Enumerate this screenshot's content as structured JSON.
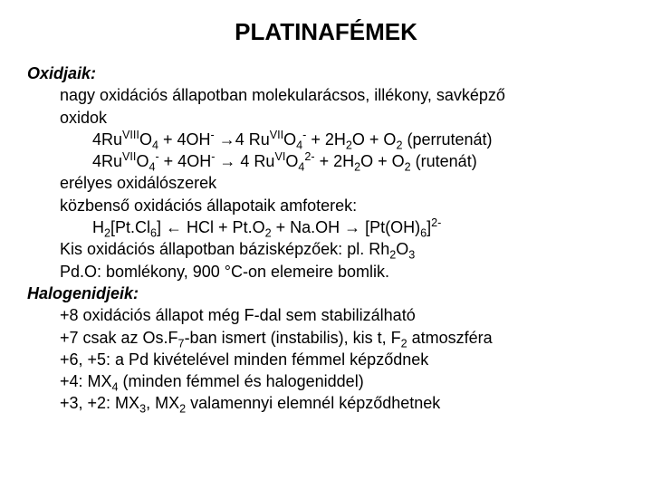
{
  "title": "PLATINAFÉMEK",
  "h1": "Oxidjaik:",
  "l1": "nagy oxidációs állapotban molekularácsos, illékony, savképző",
  "l1b": "oxidok",
  "eq1_a": "4Ru",
  "eq1_sup1": "VIII",
  "eq1_b": "O",
  "eq1_sub1": "4",
  "eq1_c": " + 4OH",
  "eq1_sup2": "-",
  "eq1_d": "  →4 Ru",
  "eq1_sup3": "VII",
  "eq1_e": "O",
  "eq1_sub2": "4",
  "eq1_sup4": "-",
  "eq1_f": " +  2H",
  "eq1_sub3": "2",
  "eq1_g": "O  + O",
  "eq1_sub4": "2",
  "eq1_h": "  (perrutenát)",
  "eq2_a": "4Ru",
  "eq2_sup1": "VII",
  "eq2_b": "O",
  "eq2_sub1": "4",
  "eq2_sup2": "-",
  "eq2_c": "  +  4OH",
  "eq2_sup3": "-",
  "eq2_d": "  → 4 Ru",
  "eq2_sup4": "VI",
  "eq2_e": "O",
  "eq2_sub2": "4",
  "eq2_sup5": "2-",
  "eq2_f": " + 2H",
  "eq2_sub3": "2",
  "eq2_g": "O + O",
  "eq2_sub4": "2",
  "eq2_h": "  (rutenát)",
  "l2": "erélyes oxidálószerek",
  "l3": "közbenső oxidációs állapotaik amfoterek:",
  "eq3_a": "H",
  "eq3_sub1": "2",
  "eq3_b": "[Pt.Cl",
  "eq3_sub2": "6",
  "eq3_c": "] ← HCl  + Pt.O",
  "eq3_sub3": "2",
  "eq3_d": "  +  Na.OH → [Pt(OH)",
  "eq3_sub4": "6",
  "eq3_e": "]",
  "eq3_sup1": "2-",
  "l4a": "Kis oxidációs állapotban bázisképzőek: pl. Rh",
  "l4_sub1": "2",
  "l4b": "O",
  "l4_sub2": "3",
  "l5": "Pd.O: bomlékony, 900 °C-on elemeire bomlik.",
  "h2": "Halogenidjeik:",
  "l6": "+8 oxidációs állapot még F-dal sem stabilizálható",
  "l7a": "+7 csak az Os.F",
  "l7_sub1": "7",
  "l7b": "-ban ismert (instabilis), kis t, F",
  "l7_sub2": "2",
  "l7c": " atmoszféra",
  "l8": "+6, +5: a Pd kivételével minden fémmel képződnek",
  "l9a": "+4:   MX",
  "l9_sub1": "4",
  "l9b": " (minden fémmel és halogeniddel)",
  "l10a": "+3, +2: MX",
  "l10_sub1": "3",
  "l10b": ", MX",
  "l10_sub2": "2",
  "l10c": " valamennyi elemnél képződhetnek"
}
